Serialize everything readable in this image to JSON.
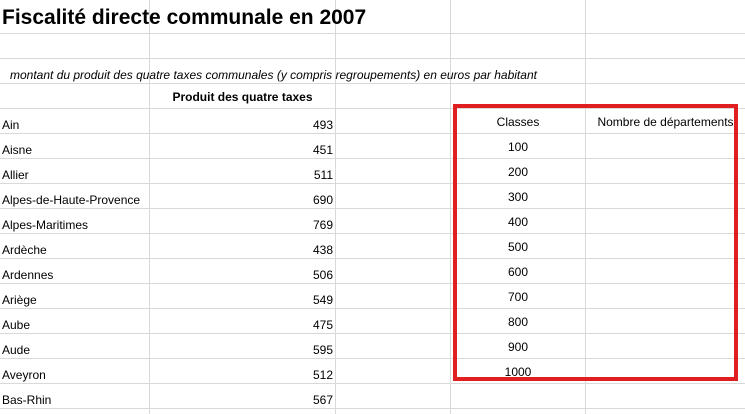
{
  "sheet": {
    "title": "Fiscalité directe communale en 2007",
    "subtitle": "montant du produit des quatre taxes communales (y compris regroupements) en euros par habitant",
    "column_header": "Produit des quatre taxes",
    "rows": [
      {
        "dept": "Ain",
        "value": "493"
      },
      {
        "dept": "Aisne",
        "value": "451"
      },
      {
        "dept": "Allier",
        "value": "511"
      },
      {
        "dept": "Alpes-de-Haute-Provence",
        "value": "690"
      },
      {
        "dept": "Alpes-Maritimes",
        "value": "769"
      },
      {
        "dept": "Ardèche",
        "value": "438"
      },
      {
        "dept": "Ardennes",
        "value": "506"
      },
      {
        "dept": "Ariège",
        "value": "549"
      },
      {
        "dept": "Aube",
        "value": "475"
      },
      {
        "dept": "Aude",
        "value": "595"
      },
      {
        "dept": "Aveyron",
        "value": "512"
      },
      {
        "dept": "Bas-Rhin",
        "value": "567"
      }
    ],
    "classes_header": "Classes",
    "count_header": "Nombre de départements",
    "classes": [
      "100",
      "200",
      "300",
      "400",
      "500",
      "600",
      "700",
      "800",
      "900",
      "1000"
    ],
    "highlight_color": "#e02020"
  }
}
